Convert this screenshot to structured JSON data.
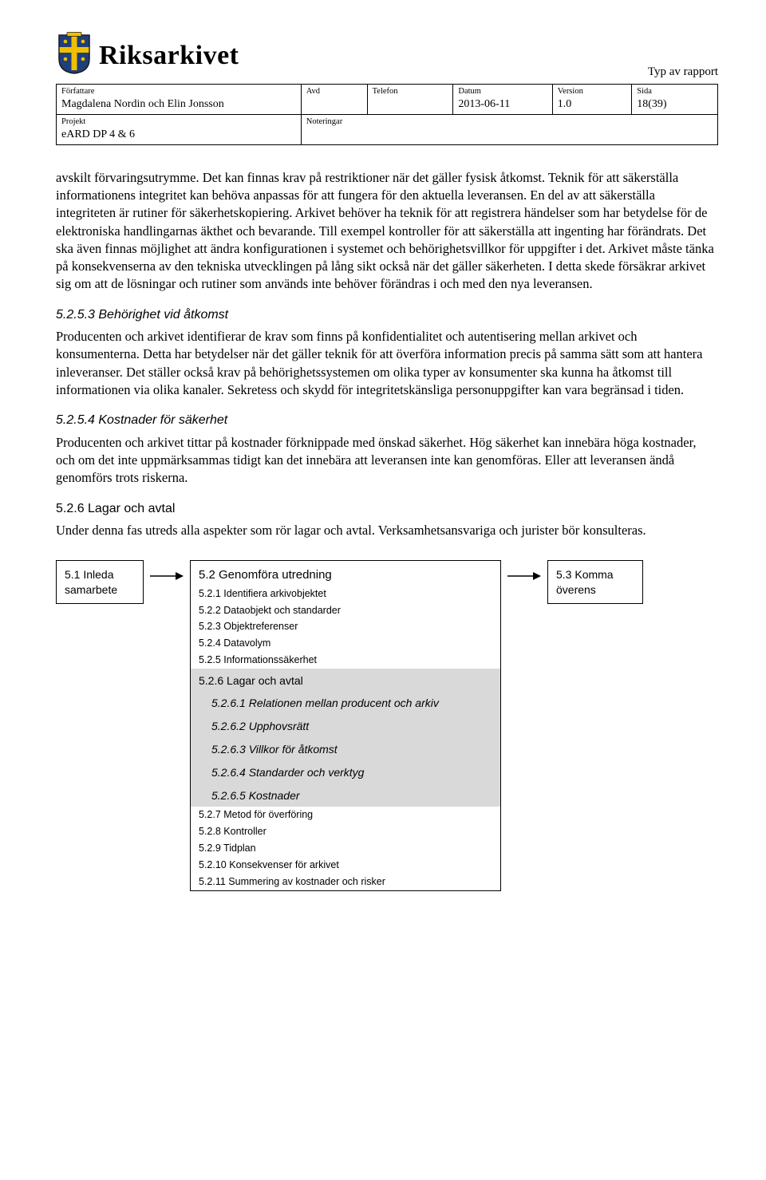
{
  "header": {
    "logo_text": "Riksarkivet",
    "report_type": "Typ av rapport",
    "columns": {
      "author_lbl": "Författare",
      "author_val": "Magdalena Nordin och Elin Jonsson",
      "dept_lbl": "Avd",
      "dept_val": "",
      "phone_lbl": "Telefon",
      "phone_val": "",
      "date_lbl": "Datum",
      "date_val": "2013-06-11",
      "version_lbl": "Version",
      "version_val": "1.0",
      "page_lbl": "Sida",
      "page_val": "18(39)",
      "project_lbl": "Projekt",
      "project_val": "eARD DP 4 & 6",
      "notes_lbl": "Noteringar",
      "notes_val": ""
    },
    "logo_colors": {
      "blue": "#1f3f7a",
      "yellow": "#f0c000",
      "outline": "#1a1a1a"
    }
  },
  "body": {
    "p1": "avskilt förvaringsutrymme. Det kan finnas krav på restriktioner när det gäller fysisk åtkomst. Teknik för att säkerställa informationens integritet kan behöva anpassas för att fungera för den aktuella leveransen. En del av att säkerställa integriteten är rutiner för säkerhetskopiering. Arkivet behöver ha teknik för att registrera händelser som har betydelse för de elektroniska handlingarnas äkthet och bevarande. Till exempel kontroller för att säkerställa att ingenting har förändrats. Det ska även finnas möjlighet att ändra konfigurationen i systemet och behörighetsvillkor för uppgifter i det. Arkivet måste tänka på konsekvenserna av den tekniska utvecklingen på lång sikt också när det gäller säkerheten. I detta skede försäkrar arkivet sig om att de lösningar och rutiner som används inte behöver förändras i och med den nya leveransen.",
    "h_5253": "5.2.5.3 Behörighet vid åtkomst",
    "p2": "Producenten och arkivet identifierar de krav som finns på konfidentialitet och autentisering mellan arkivet och konsumenterna. Detta har betydelser när det gäller teknik för att överföra information precis på samma sätt som att hantera inleveranser. Det ställer också krav på behörighetssystemen om olika typer av konsumenter ska kunna ha åtkomst till informationen via olika kanaler. Sekretess och skydd för integritetskänsliga personuppgifter kan vara begränsad i tiden.",
    "h_5254": "5.2.5.4 Kostnader för säkerhet",
    "p3": "Producenten och arkivet tittar på kostnader förknippade med önskad säkerhet. Hög säkerhet kan innebära höga kostnader, och om det inte uppmärksammas tidigt kan det innebära att leveransen inte kan genomföras. Eller att leveransen ändå genomförs trots riskerna.",
    "h_526": "5.2.6   Lagar och avtal",
    "p4": "Under denna fas utreds alla aspekter som rör lagar och avtal. Verksamhetsansvariga och jurister bör konsulteras."
  },
  "flow": {
    "left": "5.1 Inleda samarbete",
    "right": "5.3 Komma överens",
    "middle_title": "5.2 Genomföra utredning",
    "items_before": [
      "5.2.1 Identifiera arkivobjektet",
      "5.2.2 Dataobjekt och standarder",
      "5.2.3 Objektreferenser",
      "5.2.4 Datavolym",
      "5.2.5 Informationssäkerhet"
    ],
    "group_header": "5.2.6 Lagar och avtal",
    "group_subs": [
      "5.2.6.1 Relationen mellan producent och arkiv",
      "5.2.6.2 Upphovsrätt",
      "5.2.6.3 Villkor för åtkomst",
      "5.2.6.4 Standarder och verktyg",
      "5.2.6.5 Kostnader"
    ],
    "items_after": [
      "5.2.7 Metod för överföring",
      "5.2.8 Kontroller",
      "5.2.9 Tidplan",
      "5.2.10 Konsekvenser för arkivet",
      "5.2.11 Summering av kostnader och risker"
    ],
    "colors": {
      "highlight_bg": "#d9d9d9",
      "border": "#000000"
    }
  }
}
